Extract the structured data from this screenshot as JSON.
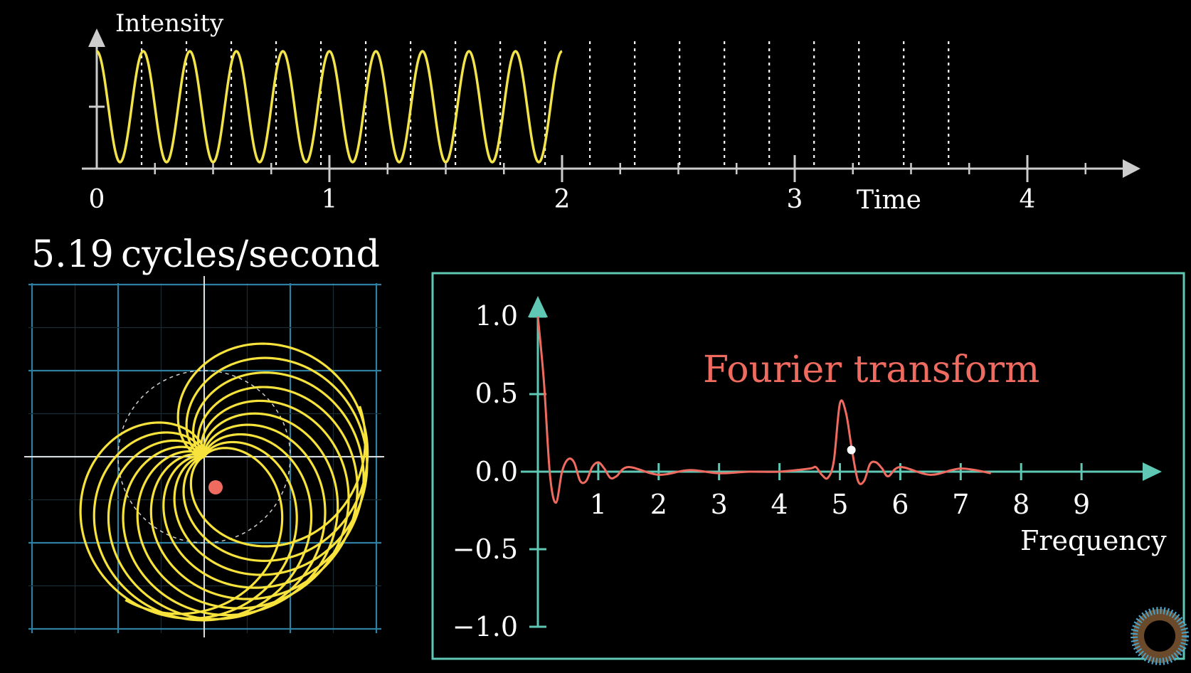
{
  "time_plot": {
    "ylabel": "Intensity",
    "xlabel": "Time",
    "x_tick_labels": [
      "0",
      "1",
      "2",
      "3",
      "4"
    ],
    "x_range": [
      0,
      4.4
    ],
    "signal_frequency_hz": 5,
    "signal_range": [
      0,
      1
    ],
    "signal_shown_until": 2,
    "wind_period_seconds": 0.1927,
    "colors": {
      "axis": "#cccccc",
      "signal": "#f2e34a",
      "guide": "#ffffff"
    }
  },
  "winding": {
    "frequency_label": "5.19",
    "unit_label": "cycles/second",
    "colors": {
      "curve": "#f7e33b",
      "grid": "#2f7fa0",
      "axis": "#dddddd",
      "center": "#f06b5f"
    }
  },
  "fourier_box": {
    "label": "Fourier transform",
    "xlabel": "Frequency",
    "colors": {
      "frame": "#5fc7b3",
      "curve": "#f06b5f",
      "label": "#f06b5f",
      "marker": "#ffffff"
    }
  },
  "chart_data": [
    {
      "type": "line",
      "title": "",
      "xlabel": "Time",
      "ylabel": "Intensity",
      "xlim": [
        0,
        4.4
      ],
      "x_ticks": [
        0,
        1,
        2,
        3,
        4
      ],
      "series": [
        {
          "function": "0.5 + 0.5*cos(2*pi*5*t)",
          "x_range": [
            0,
            2
          ]
        }
      ]
    },
    {
      "type": "line",
      "title": "",
      "xlabel": "Frequency",
      "ylabel": "",
      "xlim": [
        0,
        10
      ],
      "ylim": [
        -1.0,
        1.0
      ],
      "x_ticks": [
        1,
        2,
        3,
        4,
        5,
        6,
        7,
        8,
        9
      ],
      "y_ticks": [
        1.0,
        0.5,
        0.0,
        -0.5,
        -1.0
      ],
      "y_tick_labels": [
        "1.0",
        "0.5",
        "0.0",
        "−0.5",
        "−1.0"
      ],
      "series": [
        {
          "name": "Fourier transform",
          "x": [
            0,
            0.1,
            0.2,
            0.3,
            0.4,
            0.5,
            0.6,
            0.7,
            0.8,
            0.9,
            1.0,
            1.1,
            1.2,
            1.3,
            1.5,
            2.0,
            2.5,
            3.0,
            3.5,
            4.0,
            4.5,
            4.6,
            4.7,
            4.8,
            4.9,
            5.0,
            5.1,
            5.2,
            5.3,
            5.4,
            5.5,
            5.6,
            5.7,
            5.8,
            6.0,
            6.5,
            7.0,
            7.5
          ],
          "y": [
            1.0,
            0.58,
            -0.02,
            -0.2,
            0.0,
            0.08,
            0.06,
            -0.06,
            -0.06,
            0.03,
            0.06,
            0.02,
            -0.04,
            -0.03,
            0.03,
            -0.02,
            0.01,
            -0.01,
            0.0,
            0.0,
            0.02,
            0.03,
            -0.02,
            -0.04,
            0.07,
            0.44,
            0.38,
            0.14,
            -0.06,
            -0.06,
            0.05,
            0.06,
            0.02,
            -0.03,
            0.03,
            -0.02,
            0.02,
            -0.01
          ]
        }
      ],
      "marker": {
        "x": 5.19,
        "y": 0.14
      }
    }
  ]
}
